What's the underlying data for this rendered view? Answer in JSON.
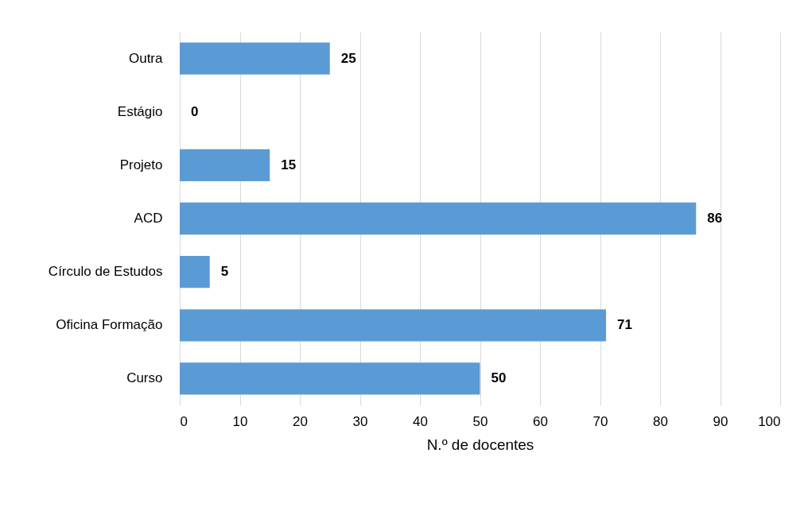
{
  "chart_data": {
    "type": "bar",
    "orientation": "horizontal",
    "xlabel": "N.º de docentes",
    "categories": [
      "Outra",
      "Estágio",
      "Projeto",
      "ACD",
      "Círculo de Estudos",
      "Oficina Formação",
      "Curso"
    ],
    "values": [
      25,
      0,
      15,
      86,
      5,
      71,
      50
    ],
    "color": "#5b9bd5",
    "xlim": [
      0,
      100
    ],
    "xticks": [
      0,
      10,
      20,
      30,
      40,
      50,
      60,
      70,
      80,
      90,
      100
    ],
    "grid": "x",
    "data_labels": true
  }
}
